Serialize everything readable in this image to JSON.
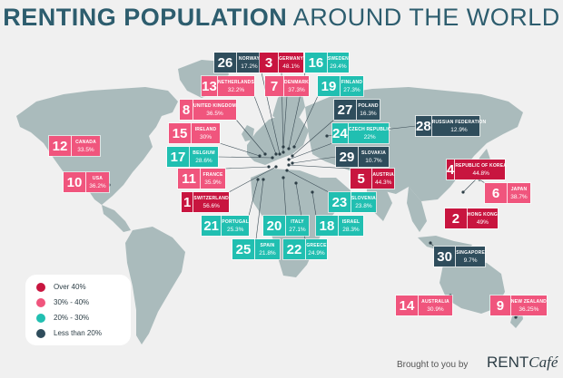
{
  "title": {
    "bold": "RENTING POPULATION",
    "light": "AROUND THE WORLD"
  },
  "colors": {
    "over40": "#c8153f",
    "c30to40": "#f0557d",
    "c20to30": "#21bfb1",
    "lt20": "#2f4d5c",
    "land": "#aabbbc",
    "water": "#f0f0f0"
  },
  "legend": [
    {
      "label": "Over 40%",
      "tier": "over40"
    },
    {
      "label": "30% - 40%",
      "tier": "c30to40"
    },
    {
      "label": "20% - 30%",
      "tier": "c20to30"
    },
    {
      "label": "Less than 20%",
      "tier": "lt20"
    }
  ],
  "footer": {
    "credit": "Brought to you by",
    "logo_rent": "RENT",
    "logo_cafe": "Café"
  },
  "chart_data": {
    "type": "map",
    "title": "RENTING POPULATION AROUND THE WORLD",
    "countries": [
      {
        "rank": "26",
        "name": "NORWAY",
        "value": "17.2%",
        "tier": "lt20"
      },
      {
        "rank": "3",
        "name": "GERMANY",
        "value": "48.1%",
        "tier": "over40"
      },
      {
        "rank": "16",
        "name": "SWEDEN",
        "value": "29.4%",
        "tier": "c20to30"
      },
      {
        "rank": "13",
        "name": "NETHERLANDS",
        "value": "32.2%",
        "tier": "c30to40"
      },
      {
        "rank": "7",
        "name": "DENMARK",
        "value": "37.3%",
        "tier": "c30to40"
      },
      {
        "rank": "19",
        "name": "FINLAND",
        "value": "27.3%",
        "tier": "c20to30"
      },
      {
        "rank": "8",
        "name": "UNITED KINGDOM",
        "value": "36.5%",
        "tier": "c30to40"
      },
      {
        "rank": "27",
        "name": "POLAND",
        "value": "16.3%",
        "tier": "lt20"
      },
      {
        "rank": "15",
        "name": "IRELAND",
        "value": "30%",
        "tier": "c30to40"
      },
      {
        "rank": "24",
        "name": "CZECH REPUBLIC",
        "value": "22%",
        "tier": "c20to30"
      },
      {
        "rank": "28",
        "name": "RUSSIAN FEDERATION",
        "value": "12.9%",
        "tier": "lt20"
      },
      {
        "rank": "12",
        "name": "CANADA",
        "value": "33.5%",
        "tier": "c30to40"
      },
      {
        "rank": "17",
        "name": "BELGIUM",
        "value": "28.6%",
        "tier": "c20to30"
      },
      {
        "rank": "29",
        "name": "SLOVAKIA",
        "value": "10.7%",
        "tier": "lt20"
      },
      {
        "rank": "11",
        "name": "FRANCE",
        "value": "35.9%",
        "tier": "c30to40"
      },
      {
        "rank": "5",
        "name": "AUSTRIA",
        "value": "44.3%",
        "tier": "over40"
      },
      {
        "rank": "4",
        "name": "REPUBLIC OF KOREA",
        "value": "44.8%",
        "tier": "over40"
      },
      {
        "rank": "10",
        "name": "USA",
        "value": "36.2%",
        "tier": "c30to40"
      },
      {
        "rank": "6",
        "name": "JAPAN",
        "value": "38.7%",
        "tier": "c30to40"
      },
      {
        "rank": "1",
        "name": "SWITZERLAND",
        "value": "56.6%",
        "tier": "over40"
      },
      {
        "rank": "23",
        "name": "SLOVENIA",
        "value": "23.8%",
        "tier": "c20to30"
      },
      {
        "rank": "21",
        "name": "PORTUGAL",
        "value": "25.3%",
        "tier": "c20to30"
      },
      {
        "rank": "20",
        "name": "ITALY",
        "value": "27.1%",
        "tier": "c20to30"
      },
      {
        "rank": "18",
        "name": "ISRAEL",
        "value": "28.3%",
        "tier": "c20to30"
      },
      {
        "rank": "2",
        "name": "HONG KONG",
        "value": "49%",
        "tier": "over40"
      },
      {
        "rank": "25",
        "name": "SPAIN",
        "value": "21.8%",
        "tier": "c20to30"
      },
      {
        "rank": "22",
        "name": "GREECE",
        "value": "24.9%",
        "tier": "c20to30"
      },
      {
        "rank": "30",
        "name": "SINGAPORE",
        "value": "9.7%",
        "tier": "lt20"
      },
      {
        "rank": "14",
        "name": "AUSTRALIA",
        "value": "30.9%",
        "tier": "c30to40"
      },
      {
        "rank": "9",
        "name": "NEW ZEALAND",
        "value": "36.25%",
        "tier": "c30to40"
      }
    ]
  }
}
